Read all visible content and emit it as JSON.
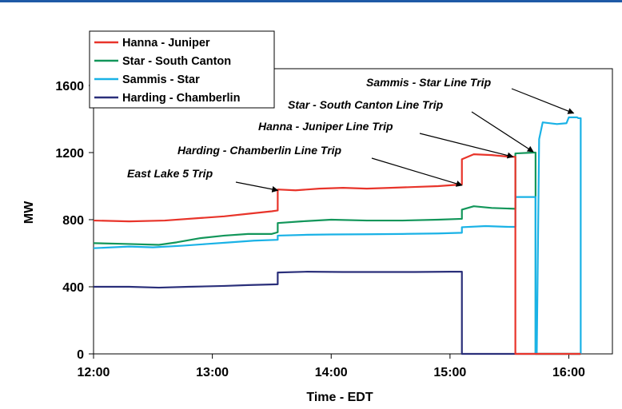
{
  "chart_data": {
    "type": "line",
    "xlabel": "Time - EDT",
    "ylabel": "MW",
    "xlim": [
      12.0,
      16.3667
    ],
    "ylim": [
      0,
      1700
    ],
    "x_ticks": [
      {
        "value": 12.0,
        "label": "12:00"
      },
      {
        "value": 13.0,
        "label": "13:00"
      },
      {
        "value": 14.0,
        "label": "14:00"
      },
      {
        "value": 15.0,
        "label": "15:00"
      },
      {
        "value": 16.0,
        "label": "16:00"
      }
    ],
    "y_ticks": [
      {
        "value": 0,
        "label": "0"
      },
      {
        "value": 400,
        "label": "400"
      },
      {
        "value": 800,
        "label": "800"
      },
      {
        "value": 1200,
        "label": "1200"
      },
      {
        "value": 1600,
        "label": "1600"
      }
    ],
    "grid": false,
    "legend_position": "top-left",
    "series": [
      {
        "name": "Hanna - Juniper",
        "color": "#e8342a",
        "points": [
          [
            12.0,
            795
          ],
          [
            12.3,
            790
          ],
          [
            12.6,
            795
          ],
          [
            12.9,
            810
          ],
          [
            13.1,
            820
          ],
          [
            13.3,
            835
          ],
          [
            13.5,
            850
          ],
          [
            13.55,
            855
          ],
          [
            13.55,
            980
          ],
          [
            13.7,
            975
          ],
          [
            13.9,
            985
          ],
          [
            14.1,
            990
          ],
          [
            14.3,
            985
          ],
          [
            14.5,
            990
          ],
          [
            14.7,
            995
          ],
          [
            14.9,
            1000
          ],
          [
            15.1,
            1010
          ],
          [
            15.1,
            1160
          ],
          [
            15.2,
            1190
          ],
          [
            15.35,
            1185
          ],
          [
            15.5,
            1175
          ],
          [
            15.55,
            1175
          ],
          [
            15.55,
            0
          ],
          [
            16.1,
            0
          ]
        ]
      },
      {
        "name": "Star - South Canton",
        "color": "#12965a",
        "points": [
          [
            12.0,
            660
          ],
          [
            12.3,
            655
          ],
          [
            12.55,
            650
          ],
          [
            12.7,
            665
          ],
          [
            12.9,
            690
          ],
          [
            13.1,
            705
          ],
          [
            13.3,
            715
          ],
          [
            13.5,
            715
          ],
          [
            13.55,
            725
          ],
          [
            13.55,
            780
          ],
          [
            13.75,
            790
          ],
          [
            14.0,
            800
          ],
          [
            14.3,
            795
          ],
          [
            14.6,
            795
          ],
          [
            14.9,
            800
          ],
          [
            15.1,
            805
          ],
          [
            15.1,
            860
          ],
          [
            15.2,
            880
          ],
          [
            15.35,
            870
          ],
          [
            15.55,
            865
          ],
          [
            15.55,
            1195
          ],
          [
            15.7,
            1200
          ],
          [
            15.72,
            1200
          ],
          [
            15.72,
            0
          ],
          [
            16.1,
            0
          ]
        ]
      },
      {
        "name": "Sammis - Star",
        "color": "#1ab2e6",
        "points": [
          [
            12.0,
            630
          ],
          [
            12.3,
            640
          ],
          [
            12.5,
            635
          ],
          [
            12.75,
            645
          ],
          [
            12.95,
            655
          ],
          [
            13.15,
            665
          ],
          [
            13.35,
            675
          ],
          [
            13.55,
            680
          ],
          [
            13.55,
            705
          ],
          [
            13.8,
            710
          ],
          [
            14.0,
            712
          ],
          [
            14.3,
            713
          ],
          [
            14.6,
            715
          ],
          [
            14.9,
            718
          ],
          [
            15.1,
            722
          ],
          [
            15.1,
            755
          ],
          [
            15.3,
            762
          ],
          [
            15.5,
            757
          ],
          [
            15.55,
            757
          ],
          [
            15.55,
            935
          ],
          [
            15.72,
            935
          ],
          [
            15.72,
            0
          ],
          [
            15.73,
            0
          ],
          [
            15.75,
            1280
          ],
          [
            15.78,
            1380
          ],
          [
            15.9,
            1370
          ],
          [
            15.98,
            1375
          ],
          [
            16.0,
            1410
          ],
          [
            16.07,
            1410
          ],
          [
            16.08,
            1405
          ],
          [
            16.1,
            1405
          ],
          [
            16.1,
            0
          ]
        ]
      },
      {
        "name": "Harding - Chamberlin",
        "color": "#2a2f7a",
        "points": [
          [
            12.0,
            400
          ],
          [
            12.3,
            400
          ],
          [
            12.55,
            395
          ],
          [
            12.8,
            400
          ],
          [
            13.1,
            405
          ],
          [
            13.3,
            410
          ],
          [
            13.55,
            415
          ],
          [
            13.55,
            485
          ],
          [
            13.8,
            490
          ],
          [
            14.1,
            488
          ],
          [
            14.4,
            488
          ],
          [
            14.7,
            488
          ],
          [
            15.0,
            490
          ],
          [
            15.1,
            490
          ],
          [
            15.1,
            0
          ],
          [
            16.1,
            0
          ]
        ]
      }
    ],
    "annotations": [
      {
        "text": "East Lake 5 Trip",
        "target": [
          13.55,
          975
        ]
      },
      {
        "text": "Harding - Chamberlin Line Trip",
        "target": [
          15.1,
          1005
        ]
      },
      {
        "text": "Hanna - Juniper Line Trip",
        "target": [
          15.53,
          1175
        ]
      },
      {
        "text": "Star - South Canton Line Trip",
        "target": [
          15.7,
          1205
        ]
      },
      {
        "text": "Sammis - Star Line Trip",
        "target": [
          16.04,
          1435
        ]
      }
    ]
  }
}
